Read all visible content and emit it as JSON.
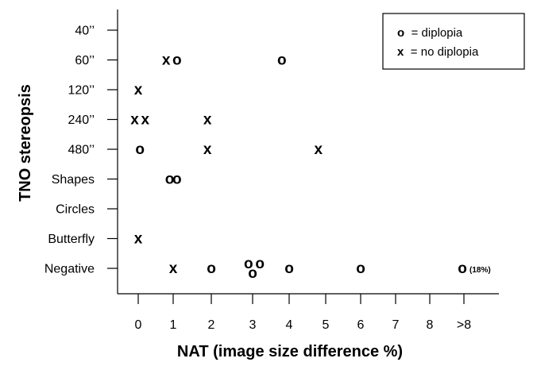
{
  "chart_data": {
    "type": "scatter",
    "title": "",
    "xlabel": "NAT (image size difference %)",
    "ylabel": "TNO stereopsis",
    "x_categories": [
      "0",
      "1",
      "2",
      "3",
      "4",
      "5",
      "6",
      "7",
      "8",
      ">8"
    ],
    "y_categories": [
      "40’’",
      "60’’",
      "120’’",
      "240’’",
      "480’’",
      "Shapes",
      "Circles",
      "Butterfly",
      "Negative"
    ],
    "grid": false,
    "legend": {
      "placement": "top-right",
      "entries": [
        {
          "symbol": "o",
          "label": "= diplopia"
        },
        {
          "symbol": "x",
          "label": "= no diplopia"
        }
      ]
    },
    "series": [
      {
        "name": "diplopia",
        "symbol": "o",
        "points": [
          {
            "x": 1.1,
            "y": "60’’"
          },
          {
            "x": 3.8,
            "y": "60’’"
          },
          {
            "x": 0.05,
            "y": "480’’"
          },
          {
            "x": 0.9,
            "y": "Shapes"
          },
          {
            "x": 1.1,
            "y": "Shapes"
          },
          {
            "x": 2.0,
            "y": "Negative"
          },
          {
            "x": 2.9,
            "y": "Negative"
          },
          {
            "x": 3.2,
            "y": "Negative"
          },
          {
            "x": 3.0,
            "y": "Negative"
          },
          {
            "x": 4.0,
            "y": "Negative"
          },
          {
            "x": 6.0,
            "y": "Negative"
          },
          {
            "x": 18,
            "y": "Negative",
            "label": "(18%)"
          }
        ]
      },
      {
        "name": "no diplopia",
        "symbol": "x",
        "points": [
          {
            "x": 0.8,
            "y": "60’’"
          },
          {
            "x": 0.0,
            "y": "120’’"
          },
          {
            "x": -0.1,
            "y": "240’’"
          },
          {
            "x": 0.2,
            "y": "240’’"
          },
          {
            "x": 1.9,
            "y": "240’’"
          },
          {
            "x": 1.9,
            "y": "480’’"
          },
          {
            "x": 4.8,
            "y": "480’’"
          },
          {
            "x": 0.0,
            "y": "Butterfly"
          },
          {
            "x": 1.0,
            "y": "Negative"
          }
        ]
      }
    ]
  }
}
